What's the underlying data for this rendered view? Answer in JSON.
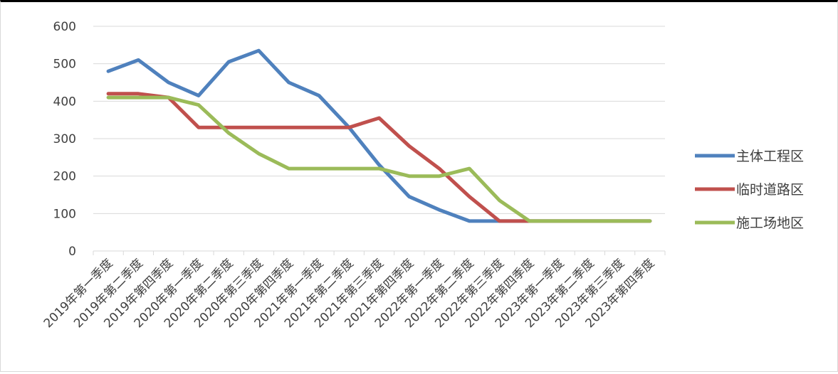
{
  "chart_data": {
    "type": "line",
    "categories": [
      "2019年第一季度",
      "2019年第二季度",
      "2019年第四季度",
      "2020年第一季度",
      "2020年第二季度",
      "2020年第三季度",
      "2020年第四季度",
      "2021年第一季度",
      "2021年第二季度",
      "2021年第三季度",
      "2021年第四季度",
      "2022年第一季度",
      "2022年第二季度",
      "2022年第三季度",
      "2022年第四季度",
      "2023年第一季度",
      "2023年第二季度",
      "2023年第三季度",
      "2023年第四季度"
    ],
    "series": [
      {
        "name": "主体工程区",
        "color": "#4f81bd",
        "values": [
          480,
          510,
          450,
          415,
          505,
          535,
          450,
          415,
          330,
          230,
          145,
          110,
          80,
          80,
          80,
          80,
          80,
          80,
          80
        ]
      },
      {
        "name": "临时道路区",
        "color": "#c0504d",
        "values": [
          420,
          420,
          410,
          330,
          330,
          330,
          330,
          330,
          330,
          355,
          280,
          220,
          145,
          80,
          80,
          80,
          80,
          80,
          80
        ]
      },
      {
        "name": "施工场地区",
        "color": "#9bbb59",
        "values": [
          410,
          410,
          410,
          390,
          315,
          260,
          220,
          220,
          220,
          220,
          200,
          200,
          220,
          135,
          80,
          80,
          80,
          80,
          80
        ]
      }
    ],
    "yticks": [
      "0",
      "100",
      "200",
      "300",
      "400",
      "500",
      "600"
    ],
    "ylim": [
      0,
      600
    ],
    "grid": true,
    "legend_position": "right"
  }
}
